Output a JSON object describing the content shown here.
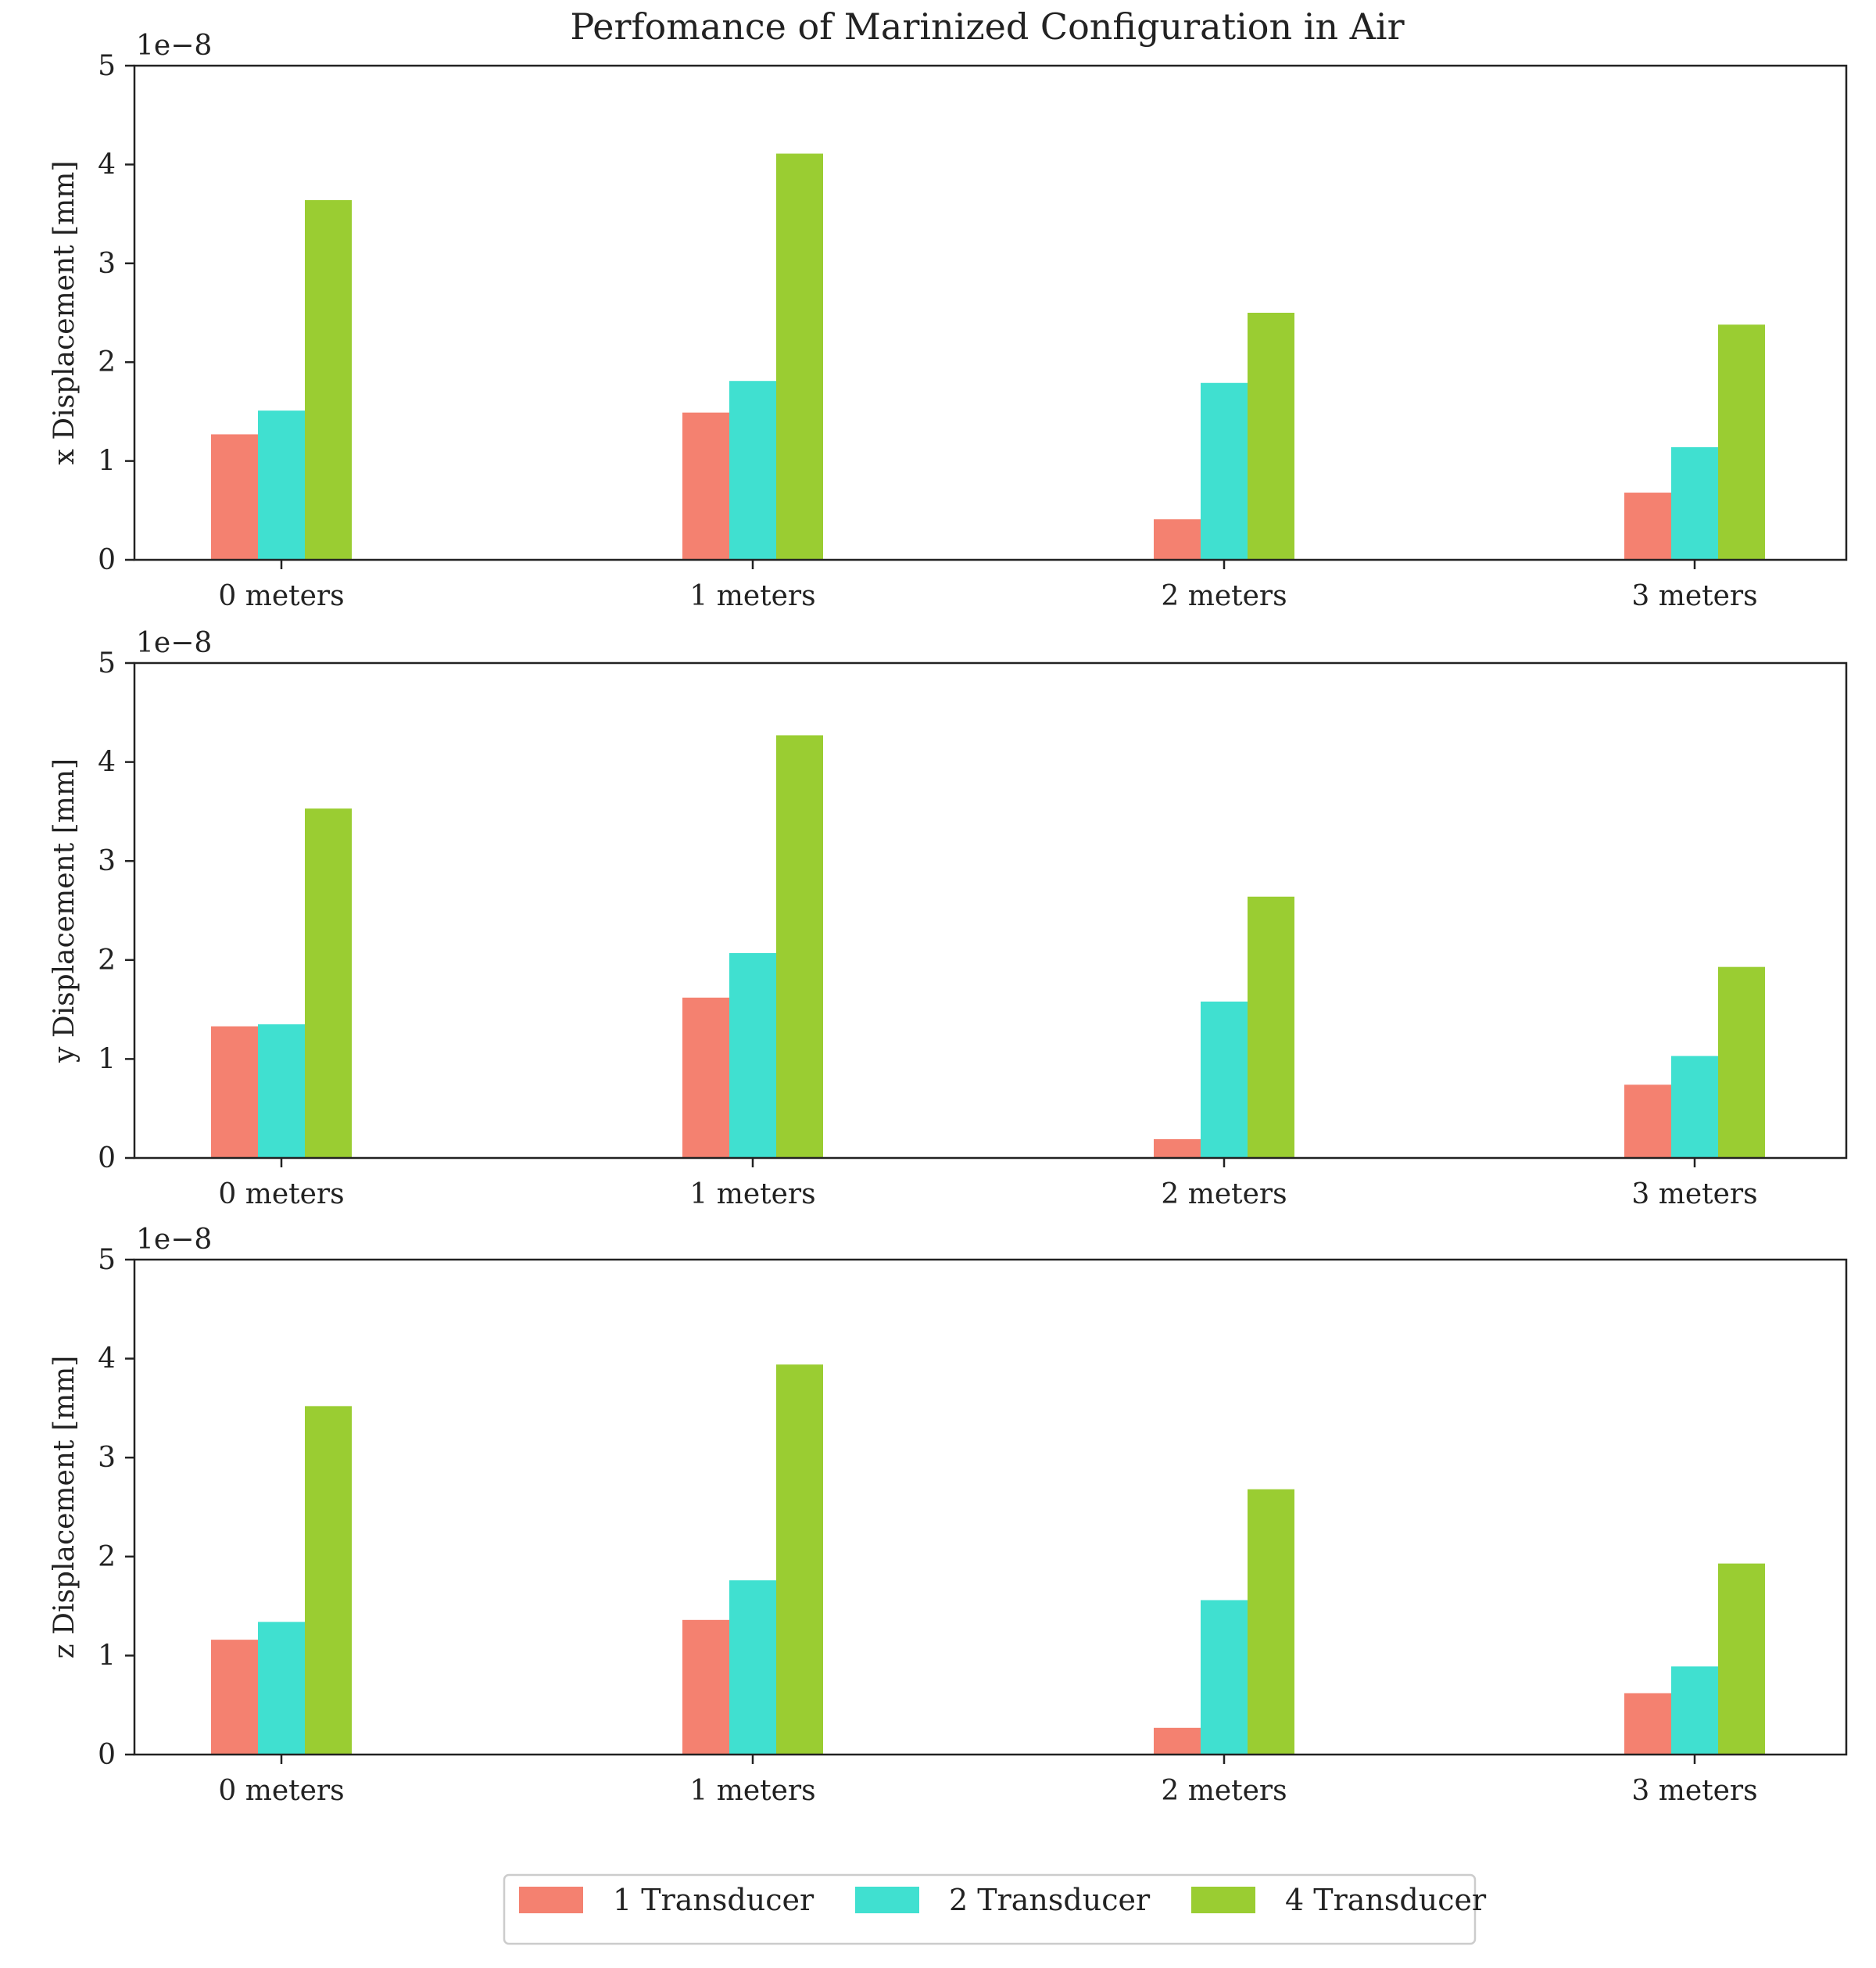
{
  "figure_title": "Perfomance of Marinized Configuration in Air",
  "colors": {
    "one": "#f48170",
    "two": "#40e0d0",
    "four": "#9acd32",
    "axis": "#222222"
  },
  "legend": {
    "placement": "bottom-center",
    "items": [
      "1 Transducer",
      "2 Transducer",
      "4 Transducer"
    ]
  },
  "chart_data": [
    {
      "type": "bar",
      "categories": [
        "0 meters",
        "1 meters",
        "2 meters",
        "3 meters"
      ],
      "series": [
        {
          "name": "1 Transducer",
          "values": [
            1.27,
            1.49,
            0.41,
            0.68
          ]
        },
        {
          "name": "2 Transducer",
          "values": [
            1.51,
            1.81,
            1.79,
            1.14
          ]
        },
        {
          "name": "4 Transducer",
          "values": [
            3.64,
            4.11,
            2.5,
            2.38
          ]
        }
      ],
      "title": "Perfomance of Marinized Configuration in Air",
      "ylabel": "x Displacement [mm]",
      "xlabel": "",
      "ylim": [
        0,
        5
      ],
      "yticks": [
        "0",
        "1",
        "2",
        "3",
        "4",
        "5"
      ],
      "offset_label": "1e−8"
    },
    {
      "type": "bar",
      "categories": [
        "0 meters",
        "1 meters",
        "2 meters",
        "3 meters"
      ],
      "series": [
        {
          "name": "1 Transducer",
          "values": [
            1.33,
            1.62,
            0.19,
            0.74
          ]
        },
        {
          "name": "2 Transducer",
          "values": [
            1.35,
            2.07,
            1.58,
            1.03
          ]
        },
        {
          "name": "4 Transducer",
          "values": [
            3.53,
            4.27,
            2.64,
            1.93
          ]
        }
      ],
      "ylabel": "y Displacement [mm]",
      "xlabel": "",
      "ylim": [
        0,
        5
      ],
      "yticks": [
        "0",
        "1",
        "2",
        "3",
        "4",
        "5"
      ],
      "offset_label": "1e−8"
    },
    {
      "type": "bar",
      "categories": [
        "0 meters",
        "1 meters",
        "2 meters",
        "3 meters"
      ],
      "series": [
        {
          "name": "1 Transducer",
          "values": [
            1.16,
            1.36,
            0.27,
            0.62
          ]
        },
        {
          "name": "2 Transducer",
          "values": [
            1.34,
            1.76,
            1.56,
            0.89
          ]
        },
        {
          "name": "4 Transducer",
          "values": [
            3.52,
            3.94,
            2.68,
            1.93
          ]
        }
      ],
      "ylabel": "z Displacement [mm]",
      "xlabel": "",
      "ylim": [
        0,
        5
      ],
      "yticks": [
        "0",
        "1",
        "2",
        "3",
        "4",
        "5"
      ],
      "offset_label": "1e−8"
    }
  ]
}
